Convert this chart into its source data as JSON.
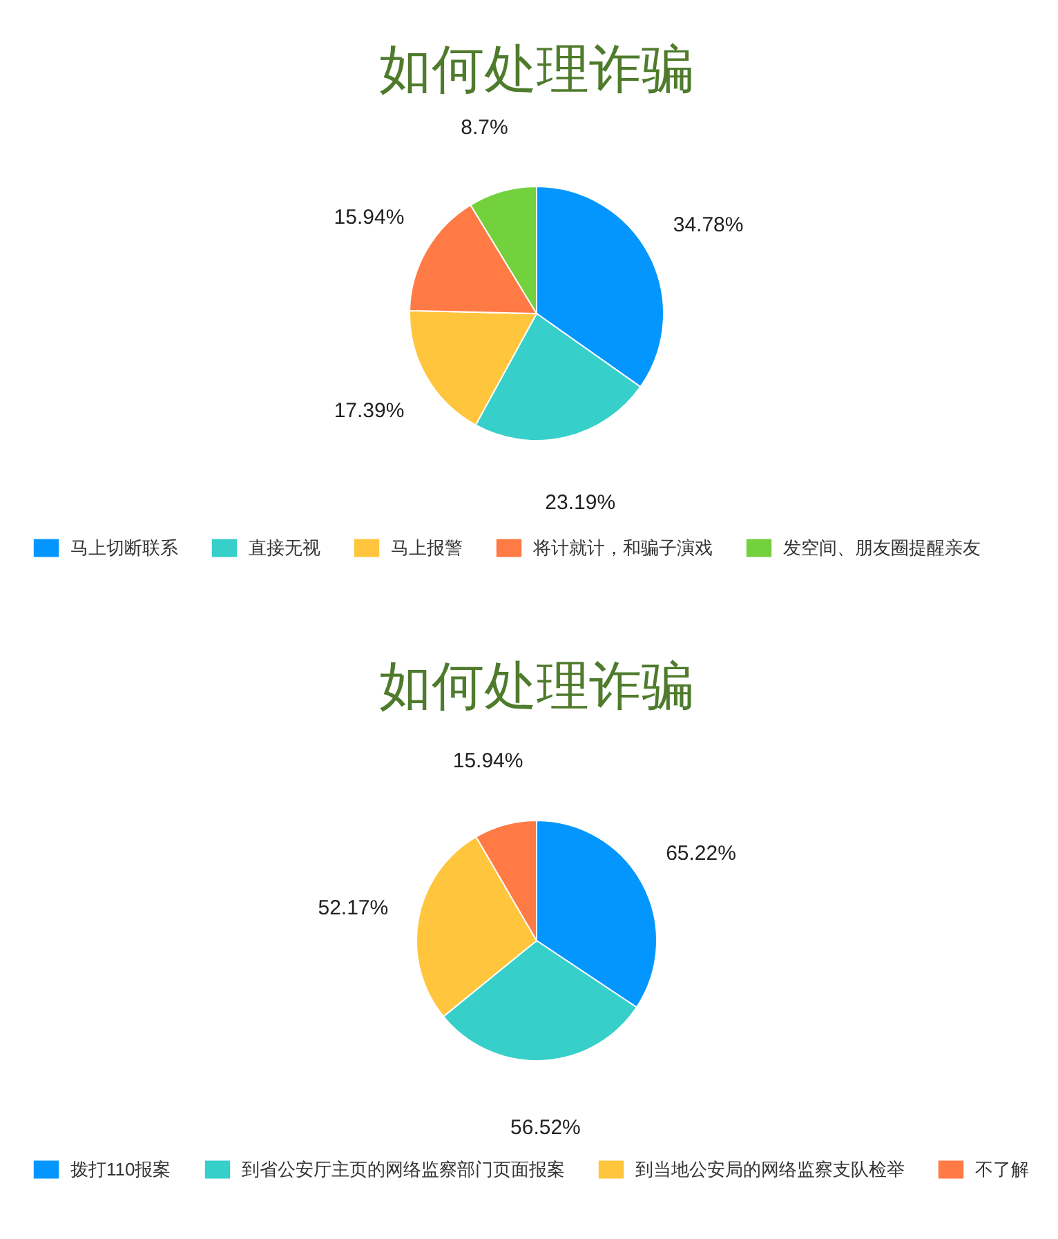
{
  "chart_data": [
    {
      "type": "pie",
      "title": "如何处理诈骗",
      "categories": [
        "马上切断联系",
        "直接无视",
        "马上报警",
        "将计就计，和骗子演戏",
        "发空间、朋友圈提醒亲友"
      ],
      "values": [
        34.78,
        23.19,
        17.39,
        15.94,
        8.7
      ],
      "colors": [
        "#0496ff",
        "#36cfc9",
        "#ffc53d",
        "#ff7a45",
        "#73d13d"
      ],
      "value_labels": [
        "34.78%",
        "23.19%",
        "17.39%",
        "15.94%",
        "8.7%"
      ],
      "legend": "bottom"
    },
    {
      "type": "pie",
      "title": "如何处理诈骗",
      "categories": [
        "拨打110报案",
        "到省公安厅主页的网络监察部门页面报案",
        "到当地公安局的网络监察支队检举",
        "不了解"
      ],
      "values": [
        65.22,
        56.52,
        52.17,
        15.94
      ],
      "colors": [
        "#0496ff",
        "#36cfc9",
        "#ffc53d",
        "#ff7a45"
      ],
      "value_labels": [
        "65.22%",
        "56.52%",
        "52.17%",
        "15.94%"
      ],
      "legend": "bottom"
    }
  ]
}
